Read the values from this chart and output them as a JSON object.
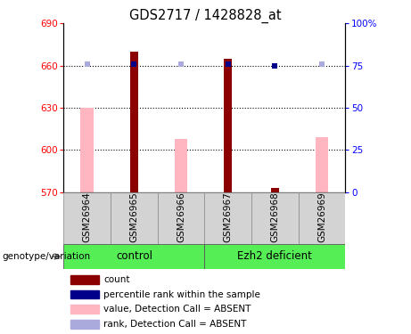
{
  "title": "GDS2717 / 1428828_at",
  "samples": [
    "GSM26964",
    "GSM26965",
    "GSM26966",
    "GSM26967",
    "GSM26968",
    "GSM26969"
  ],
  "ylim_left": [
    570,
    690
  ],
  "ylim_right": [
    0,
    100
  ],
  "yticks_left": [
    570,
    600,
    630,
    660,
    690
  ],
  "yticks_right": [
    0,
    25,
    50,
    75,
    100
  ],
  "ytick_labels_right": [
    "0",
    "25",
    "50",
    "75",
    "100%"
  ],
  "red_bars": [
    null,
    670,
    null,
    665,
    573,
    null
  ],
  "pink_bars": [
    630,
    null,
    608,
    null,
    null,
    609
  ],
  "dark_blue_squares": [
    null,
    661,
    null,
    661,
    660,
    null
  ],
  "lavender_squares": [
    661,
    null,
    661,
    null,
    null,
    661
  ],
  "red_color": "#8B0000",
  "pink_color": "#FFB6C1",
  "dark_blue_color": "#00008B",
  "lavender_color": "#AAAADD",
  "legend_items": [
    {
      "label": "count",
      "color": "#8B0000"
    },
    {
      "label": "percentile rank within the sample",
      "color": "#00008B"
    },
    {
      "label": "value, Detection Call = ABSENT",
      "color": "#FFB6C1"
    },
    {
      "label": "rank, Detection Call = ABSENT",
      "color": "#AAAADD"
    }
  ],
  "group_spans": [
    [
      1,
      3,
      "control"
    ],
    [
      4,
      6,
      "Ezh2 deficient"
    ]
  ],
  "group_color": "#55EE55",
  "xlabel_bg": "#D3D3D3"
}
